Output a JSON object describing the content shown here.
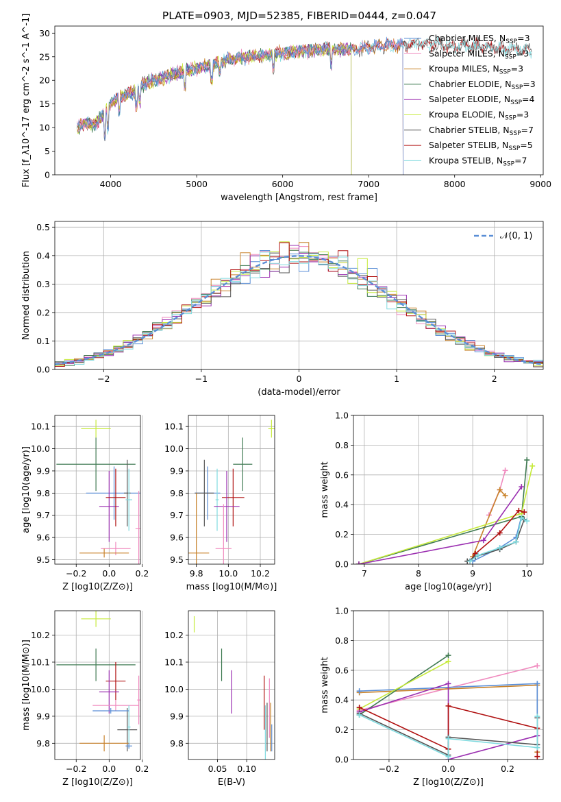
{
  "colors": {
    "Chabrier MILES": "#5a8ed6",
    "Salpeter MILES": "#f08bbf",
    "Kroupa MILES": "#c8822a",
    "Chabrier ELODIE": "#3f7a52",
    "Salpeter ELODIE": "#9a2db0",
    "Kroupa ELODIE": "#c6ea3a",
    "Chabrier STELIB": "#555555",
    "Salpeter STELIB": "#b01010",
    "Kroupa STELIB": "#7fdadf",
    "gauss": "#5a8ed6"
  },
  "chart_data": [
    {
      "id": "spectrum",
      "type": "line",
      "title": "PLATE=0903, MJD=52385, FIBERID=0444, z=0.047",
      "xlabel": "wavelength [Angstrom, rest frame]",
      "ylabel": "Flux [f_λ10^-17 erg cm^-2 s^-1 A^-1]",
      "xlim": [
        3350,
        9030
      ],
      "ylim": [
        0,
        31.5
      ],
      "xticks": [
        4000,
        5000,
        6000,
        7000,
        8000,
        9000
      ],
      "yticks": [
        0,
        5,
        10,
        15,
        20,
        25,
        30
      ],
      "grid": false,
      "legend_position": "upper right",
      "legend": [
        {
          "label": "Chabrier MILES, N",
          "sub": "SSP",
          "tail": "=3",
          "color_key": "Chabrier MILES"
        },
        {
          "label": "Salpeter MILES, N",
          "sub": "SSP",
          "tail": "=3",
          "color_key": "Salpeter MILES"
        },
        {
          "label": "Kroupa MILES, N",
          "sub": "SSP",
          "tail": "=3",
          "color_key": "Kroupa MILES"
        },
        {
          "label": "Chabrier ELODIE, N",
          "sub": "SSP",
          "tail": "=3",
          "color_key": "Chabrier ELODIE"
        },
        {
          "label": "Salpeter ELODIE, N",
          "sub": "SSP",
          "tail": "=4",
          "color_key": "Salpeter ELODIE"
        },
        {
          "label": "Kroupa ELODIE, N",
          "sub": "SSP",
          "tail": "=3",
          "color_key": "Kroupa ELODIE"
        },
        {
          "label": "Chabrier STELIB, N",
          "sub": "SSP",
          "tail": "=7",
          "color_key": "Chabrier STELIB"
        },
        {
          "label": "Salpeter STELIB, N",
          "sub": "SSP",
          "tail": "=5",
          "color_key": "Salpeter STELIB"
        },
        {
          "label": "Kroupa STELIB, N",
          "sub": "SSP",
          "tail": "=7",
          "color_key": "Kroupa STELIB"
        }
      ],
      "continuum": [
        [
          3610,
          10.0
        ],
        [
          3700,
          11.0
        ],
        [
          3800,
          10.5
        ],
        [
          3900,
          12.5
        ],
        [
          4000,
          15.0
        ],
        [
          4100,
          16.5
        ],
        [
          4200,
          17.0
        ],
        [
          4300,
          18.0
        ],
        [
          4400,
          19.5
        ],
        [
          4600,
          20.5
        ],
        [
          4800,
          21.5
        ],
        [
          5000,
          22.5
        ],
        [
          5200,
          23.5
        ],
        [
          5400,
          24.5
        ],
        [
          5600,
          25.0
        ],
        [
          5800,
          25.3
        ],
        [
          6000,
          25.8
        ],
        [
          6200,
          26.2
        ],
        [
          6400,
          26.5
        ],
        [
          6600,
          26.6
        ],
        [
          6800,
          26.5
        ],
        [
          7000,
          27.0
        ],
        [
          7200,
          27.3
        ],
        [
          7400,
          27.5
        ],
        [
          7600,
          27.8
        ],
        [
          7800,
          27.6
        ],
        [
          8000,
          27.3
        ],
        [
          8200,
          27.3
        ],
        [
          8400,
          27.0
        ],
        [
          8600,
          26.8
        ],
        [
          8800,
          26.5
        ],
        [
          8900,
          26.5
        ]
      ],
      "series_extent": {
        "Chabrier MILES": [
          3610,
          7400
        ],
        "Salpeter MILES": [
          3610,
          7400
        ],
        "Kroupa MILES": [
          3610,
          7400
        ],
        "Chabrier ELODIE": [
          3610,
          6800
        ],
        "Salpeter ELODIE": [
          3610,
          6800
        ],
        "Kroupa ELODIE": [
          3610,
          6800
        ],
        "Chabrier STELIB": [
          3610,
          8900
        ],
        "Salpeter STELIB": [
          3610,
          8900
        ],
        "Kroupa STELIB": [
          3610,
          8900
        ]
      }
    },
    {
      "id": "residuals",
      "type": "histogram",
      "xlabel": "(data-model)/error",
      "ylabel": "Normed distribution",
      "xlim": [
        -2.5,
        2.5
      ],
      "ylim": [
        0,
        0.52
      ],
      "xticks": [
        -2,
        -1,
        0,
        1,
        2
      ],
      "yticks": [
        0.0,
        0.1,
        0.2,
        0.3,
        0.4,
        0.5
      ],
      "grid": true,
      "bin_width": 0.1,
      "legend": [
        {
          "label": "𝒩(0, 1)",
          "color_key": "gauss",
          "style": "dashed"
        }
      ],
      "legend_position": "upper right"
    },
    {
      "id": "age_vs_Z",
      "type": "errorbar",
      "xlabel": "Z [log10(Z/Z⊙)]",
      "ylabel": "age  [log10(age/yr)]",
      "xlim": [
        -0.33,
        0.19
      ],
      "ylim": [
        9.48,
        10.15
      ],
      "xticks": [
        -0.2,
        0.0,
        0.2
      ],
      "yticks": [
        9.5,
        9.6,
        9.7,
        9.8,
        9.9,
        10.0,
        10.1
      ],
      "grid": true,
      "points": [
        {
          "model": "Kroupa ELODIE",
          "x": -0.08,
          "xerr": 0.09,
          "y": 10.09,
          "yerr": 0.04
        },
        {
          "model": "Chabrier ELODIE",
          "x": -0.08,
          "xerr": 0.24,
          "y": 9.93,
          "yerr": 0.12
        },
        {
          "model": "Chabrier MILES",
          "x": 0.03,
          "xerr": 0.17,
          "y": 9.8,
          "yerr": 0.12
        },
        {
          "model": "Chabrier STELIB",
          "x": 0.11,
          "xerr": 0.02,
          "y": 9.8,
          "yerr": 0.15
        },
        {
          "model": "Kroupa STELIB",
          "x": 0.12,
          "xerr": 0.02,
          "y": 9.77,
          "yerr": 0.14
        },
        {
          "model": "Salpeter ELODIE",
          "x": 0.0,
          "xerr": 0.06,
          "y": 9.74,
          "yerr": 0.16
        },
        {
          "model": "Salpeter STELIB",
          "x": 0.04,
          "xerr": 0.06,
          "y": 9.78,
          "yerr": 0.13
        },
        {
          "model": "Salpeter MILES",
          "x": 0.18,
          "xerr": 0.02,
          "y": 9.64,
          "yerr": 0.17
        },
        {
          "model": "Salpeter MILES",
          "x": 0.04,
          "xerr": 0.09,
          "y": 9.55,
          "yerr": 0.03
        },
        {
          "model": "Kroupa MILES",
          "x": -0.03,
          "xerr": 0.15,
          "y": 9.53,
          "yerr": 0.02
        }
      ]
    },
    {
      "id": "age_vs_mass",
      "type": "errorbar",
      "xlabel": "mass [log10(M/M⊙)]",
      "ylabel": "",
      "xlim": [
        9.75,
        10.29
      ],
      "ylim": [
        9.48,
        10.15
      ],
      "xticks": [
        9.8,
        10.0,
        10.2
      ],
      "yticks": [
        9.5,
        9.6,
        9.7,
        9.8,
        9.9,
        10.0,
        10.1
      ],
      "grid": true,
      "points": [
        {
          "model": "Kroupa ELODIE",
          "x": 10.27,
          "xerr": 0.02,
          "y": 10.09,
          "yerr": 0.04
        },
        {
          "model": "Chabrier ELODIE",
          "x": 10.09,
          "xerr": 0.06,
          "y": 9.93,
          "yerr": 0.12
        },
        {
          "model": "Chabrier MILES",
          "x": 9.87,
          "xerr": 0.08,
          "y": 9.8,
          "yerr": 0.12
        },
        {
          "model": "Chabrier STELIB",
          "x": 9.85,
          "xerr": 0.06,
          "y": 9.8,
          "yerr": 0.15
        },
        {
          "model": "Kroupa STELIB",
          "x": 9.93,
          "xerr": 0.01,
          "y": 9.77,
          "yerr": 0.14
        },
        {
          "model": "Salpeter STELIB",
          "x": 10.03,
          "xerr": 0.07,
          "y": 9.78,
          "yerr": 0.13
        },
        {
          "model": "Salpeter ELODIE",
          "x": 9.99,
          "xerr": 0.08,
          "y": 9.74,
          "yerr": 0.16
        },
        {
          "model": "Salpeter MILES",
          "x": 9.97,
          "xerr": 0.05,
          "y": 9.55,
          "yerr": 0.2
        },
        {
          "model": "Kroupa MILES",
          "x": 9.8,
          "xerr": 0.08,
          "y": 9.53,
          "yerr": 0.27
        }
      ]
    },
    {
      "id": "weight_vs_age",
      "type": "line",
      "xlabel": "age  [log10(age/yr)]",
      "ylabel": "mass weight",
      "xlim": [
        6.8,
        10.3
      ],
      "ylim": [
        0,
        1.0
      ],
      "xticks": [
        7,
        8,
        9,
        10
      ],
      "yticks": [
        0.0,
        0.2,
        0.4,
        0.6,
        0.8,
        1.0
      ],
      "grid": true,
      "series": [
        {
          "model": "Salpeter MILES",
          "x": [
            9.3,
            9.5,
            9.6
          ],
          "y": [
            0.33,
            0.5,
            0.63
          ]
        },
        {
          "model": "Kroupa MILES",
          "x": [
            9.0,
            9.5,
            9.6
          ],
          "y": [
            0.05,
            0.5,
            0.46
          ]
        },
        {
          "model": "Chabrier MILES",
          "x": [
            9.0,
            9.5,
            9.8,
            9.9
          ],
          "y": [
            0.02,
            0.11,
            0.18,
            0.32
          ]
        },
        {
          "model": "Chabrier ELODIE",
          "x": [
            6.9,
            9.9,
            10.0
          ],
          "y": [
            0.0,
            0.32,
            0.7
          ]
        },
        {
          "model": "Kroupa ELODIE",
          "x": [
            6.9,
            9.9,
            10.1
          ],
          "y": [
            0.0,
            0.34,
            0.66
          ]
        },
        {
          "model": "Salpeter ELODIE",
          "x": [
            6.9,
            9.2,
            9.9
          ],
          "y": [
            0.0,
            0.16,
            0.52
          ]
        },
        {
          "model": "Salpeter STELIB",
          "x": [
            8.95,
            9.05,
            9.5,
            9.85,
            9.95
          ],
          "y": [
            0.02,
            0.07,
            0.21,
            0.36,
            0.35
          ]
        },
        {
          "model": "Chabrier STELIB",
          "x": [
            8.9,
            9.05,
            9.5,
            9.8,
            9.95
          ],
          "y": [
            0.02,
            0.05,
            0.1,
            0.15,
            0.3
          ]
        },
        {
          "model": "Kroupa STELIB",
          "x": [
            8.95,
            9.1,
            9.5,
            9.8,
            9.9,
            10.0
          ],
          "y": [
            0.02,
            0.06,
            0.11,
            0.15,
            0.31,
            0.29
          ]
        }
      ]
    },
    {
      "id": "mass_vs_Z",
      "type": "errorbar",
      "xlabel": "Z [log10(Z/Z⊙)]",
      "ylabel": "mass [log10(M/M⊙)]",
      "xlim": [
        -0.33,
        0.19
      ],
      "ylim": [
        9.74,
        10.29
      ],
      "xticks": [
        -0.2,
        0.0,
        0.2
      ],
      "yticks": [
        9.8,
        9.9,
        10.0,
        10.1,
        10.2
      ],
      "grid": true,
      "points": [
        {
          "model": "Kroupa ELODIE",
          "x": -0.08,
          "xerr": 0.09,
          "y": 10.26,
          "yerr": 0.03
        },
        {
          "model": "Chabrier ELODIE",
          "x": -0.08,
          "xerr": 0.24,
          "y": 10.09,
          "yerr": 0.06
        },
        {
          "model": "Salpeter STELIB",
          "x": 0.04,
          "xerr": 0.06,
          "y": 10.03,
          "yerr": 0.07
        },
        {
          "model": "Salpeter ELODIE",
          "x": 0.0,
          "xerr": 0.06,
          "y": 9.99,
          "yerr": 0.08
        },
        {
          "model": "Salpeter MILES",
          "x": 0.04,
          "xerr": 0.14,
          "y": 9.94,
          "yerr": 0.02
        },
        {
          "model": "Salpeter MILES",
          "x": 0.18,
          "xerr": 0.01,
          "y": 9.96,
          "yerr": 0.09
        },
        {
          "model": "Chabrier STELIB",
          "x": 0.11,
          "xerr": 0.06,
          "y": 9.85,
          "yerr": 0.08
        },
        {
          "model": "Kroupa STELIB",
          "x": 0.12,
          "xerr": 0.01,
          "y": 9.86,
          "yerr": 0.08
        },
        {
          "model": "Chabrier MILES",
          "x": 0.01,
          "xerr": 0.11,
          "y": 9.92,
          "yerr": 0.01
        },
        {
          "model": "Kroupa MILES",
          "x": -0.03,
          "xerr": 0.15,
          "y": 9.8,
          "yerr": 0.03
        },
        {
          "model": "Chabrier MILES",
          "x": 0.12,
          "xerr": 0.02,
          "y": 9.79,
          "yerr": 0.01
        }
      ]
    },
    {
      "id": "mass_vs_ebv",
      "type": "errorbar",
      "xlabel": "E(B-V)",
      "ylabel": "",
      "xlim": [
        0.0,
        0.148
      ],
      "ylim": [
        9.74,
        10.29
      ],
      "xticks": [
        0.05,
        0.1
      ],
      "yticks": [
        9.8,
        9.9,
        10.0,
        10.1,
        10.2
      ],
      "grid": true,
      "points": [
        {
          "model": "Kroupa ELODIE",
          "x": 0.01,
          "xerr": 0.0,
          "y": 10.24,
          "yerr": 0.03
        },
        {
          "model": "Chabrier ELODIE",
          "x": 0.057,
          "xerr": 0.0,
          "y": 10.09,
          "yerr": 0.06
        },
        {
          "model": "Salpeter ELODIE",
          "x": 0.074,
          "xerr": 0.0,
          "y": 9.99,
          "yerr": 0.08
        },
        {
          "model": "Salpeter STELIB",
          "x": 0.13,
          "xerr": 0.0,
          "y": 9.95,
          "yerr": 0.1
        },
        {
          "model": "Kroupa STELIB",
          "x": 0.132,
          "xerr": 0.0,
          "y": 9.84,
          "yerr": 0.1
        },
        {
          "model": "Chabrier STELIB",
          "x": 0.135,
          "xerr": 0.0,
          "y": 9.86,
          "yerr": 0.09
        },
        {
          "model": "Salpeter MILES",
          "x": 0.139,
          "xerr": 0.0,
          "y": 9.93,
          "yerr": 0.11
        },
        {
          "model": "Kroupa MILES",
          "x": 0.141,
          "xerr": 0.0,
          "y": 9.86,
          "yerr": 0.09
        },
        {
          "model": "Chabrier MILES",
          "x": 0.143,
          "xerr": 0.0,
          "y": 9.82,
          "yerr": 0.05
        }
      ]
    },
    {
      "id": "weight_vs_Z",
      "type": "line",
      "xlabel": "Z [log10(Z/Z⊙)]",
      "ylabel": "mass weight",
      "xlim": [
        -0.32,
        0.32
      ],
      "ylim": [
        0,
        1.0
      ],
      "xticks": [
        -0.2,
        0.0,
        0.2
      ],
      "yticks": [
        0.0,
        0.2,
        0.4,
        0.6,
        0.8,
        1.0
      ],
      "grid": true,
      "series": [
        {
          "model": "Salpeter MILES",
          "x": [
            -0.3,
            0.3
          ],
          "y": [
            0.33,
            0.63
          ]
        },
        {
          "model": "Kroupa MILES",
          "x": [
            -0.3,
            0.3,
            0.3
          ],
          "y": [
            0.45,
            0.5,
            0.05
          ]
        },
        {
          "model": "Chabrier MILES",
          "x": [
            -0.3,
            0.3,
            0.3
          ],
          "y": [
            0.46,
            0.51,
            0.1
          ]
        },
        {
          "model": "Chabrier ELODIE",
          "x": [
            -0.3,
            0.0
          ],
          "y": [
            0.3,
            0.7
          ]
        },
        {
          "model": "Kroupa ELODIE",
          "x": [
            -0.3,
            0.0
          ],
          "y": [
            0.34,
            0.66
          ]
        },
        {
          "model": "Salpeter ELODIE",
          "x": [
            -0.3,
            0.0,
            0.0,
            0.3
          ],
          "y": [
            0.32,
            0.51,
            0.0,
            0.16
          ]
        },
        {
          "model": "Salpeter STELIB",
          "x": [
            -0.3,
            0.0,
            0.0,
            0.3,
            0.3
          ],
          "y": [
            0.35,
            0.07,
            0.36,
            0.21,
            0.02
          ]
        },
        {
          "model": "Chabrier STELIB",
          "x": [
            -0.3,
            0.0,
            0.0,
            0.3,
            0.3
          ],
          "y": [
            0.31,
            0.03,
            0.15,
            0.1,
            0.28
          ]
        },
        {
          "model": "Kroupa STELIB",
          "x": [
            -0.3,
            0.0,
            0.0,
            0.3,
            0.3
          ],
          "y": [
            0.3,
            0.02,
            0.14,
            0.08,
            0.29
          ]
        }
      ]
    }
  ]
}
